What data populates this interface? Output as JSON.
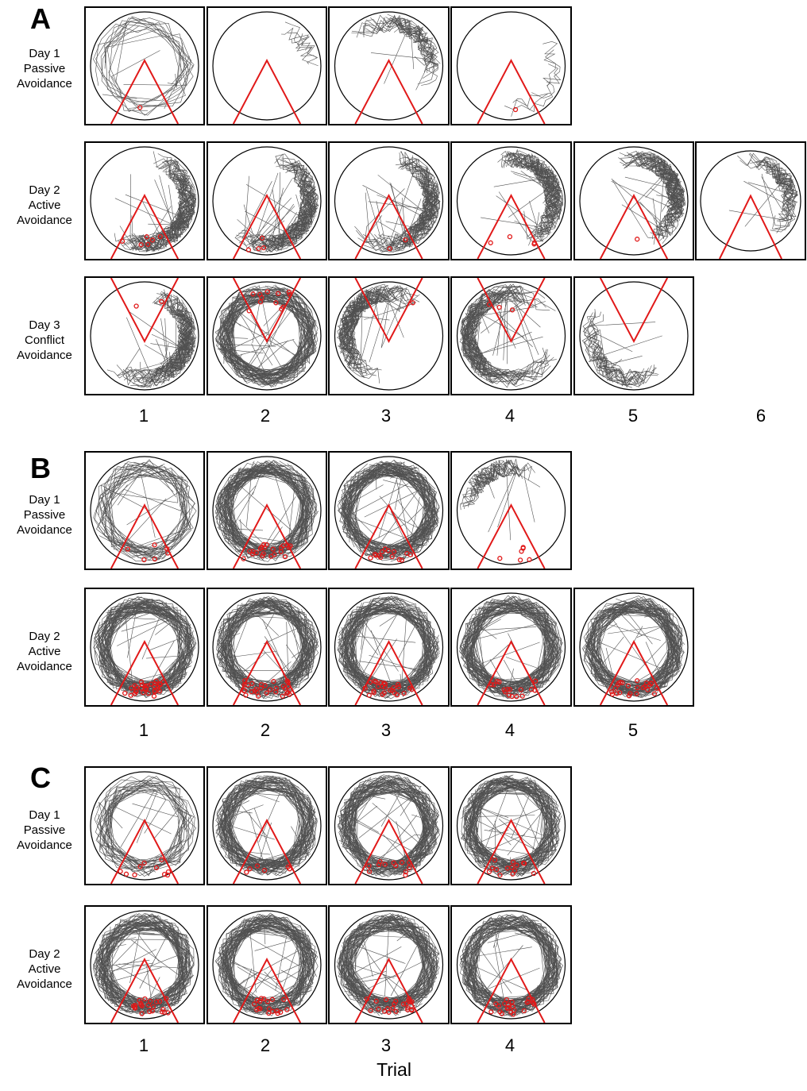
{
  "figure": {
    "axis_title": "Trial",
    "colors": {
      "arena": "#000000",
      "track": "#333333",
      "shock_zone": "#e11919",
      "shock_mark": "#e11919",
      "box_border": "#000000"
    },
    "panels": [
      {
        "letter": "A",
        "trial_numbers": [
          "1",
          "2",
          "3",
          "4",
          "5",
          "6"
        ],
        "rows": [
          {
            "label": [
              "Day 1",
              "Passive",
              "Avoidance"
            ],
            "zone_orientation": "up",
            "trials": [
              {
                "trial": 1,
                "activity": "sparse",
                "track_region": "perimeter",
                "entries": 1
              },
              {
                "trial": 2,
                "activity": "minimal",
                "track_region": "upper-right",
                "entries": 0
              },
              {
                "trial": 3,
                "activity": "moderate",
                "track_region": "upper-arc",
                "entries": 0
              },
              {
                "trial": 4,
                "activity": "minimal",
                "track_region": "right-edge",
                "entries": 1
              }
            ]
          },
          {
            "label": [
              "Day 2",
              "Active",
              "Avoidance"
            ],
            "zone_orientation": "up",
            "trials": [
              {
                "trial": 1,
                "activity": "dense",
                "track_region": "right-arc",
                "entries": 6
              },
              {
                "trial": 2,
                "activity": "dense",
                "track_region": "right-arc",
                "entries": 4
              },
              {
                "trial": 3,
                "activity": "dense",
                "track_region": "right-arc",
                "entries": 2
              },
              {
                "trial": 4,
                "activity": "dense",
                "track_region": "upper-right-arc",
                "entries": 4
              },
              {
                "trial": 5,
                "activity": "dense",
                "track_region": "upper-right-arc",
                "entries": 1
              },
              {
                "trial": 6,
                "activity": "moderate",
                "track_region": "upper-right-arc",
                "entries": 0
              }
            ]
          },
          {
            "label": [
              "Day 3",
              "Conflict",
              "Avoidance"
            ],
            "zone_orientation": "down",
            "trials": [
              {
                "trial": 1,
                "activity": "dense",
                "track_region": "right-arc",
                "entries": 2
              },
              {
                "trial": 2,
                "activity": "dense",
                "track_region": "perimeter",
                "entries": 12
              },
              {
                "trial": 3,
                "activity": "dense",
                "track_region": "lower-left-arc",
                "entries": 1
              },
              {
                "trial": 4,
                "activity": "dense",
                "track_region": "lower-arc",
                "entries": 3
              },
              {
                "trial": 5,
                "activity": "moderate",
                "track_region": "bottom-arc",
                "entries": 0
              }
            ]
          }
        ]
      },
      {
        "letter": "B",
        "trial_numbers": [
          "1",
          "2",
          "3",
          "4",
          "5"
        ],
        "rows": [
          {
            "label": [
              "Day 1",
              "Passive",
              "Avoidance"
            ],
            "zone_orientation": "up",
            "trials": [
              {
                "trial": 1,
                "activity": "moderate",
                "track_region": "perimeter",
                "entries": 6
              },
              {
                "trial": 2,
                "activity": "dense",
                "track_region": "perimeter",
                "entries": 22
              },
              {
                "trial": 3,
                "activity": "dense",
                "track_region": "perimeter",
                "entries": 14
              },
              {
                "trial": 4,
                "activity": "moderate",
                "track_region": "left-arc",
                "entries": 6
              }
            ]
          },
          {
            "label": [
              "Day 2",
              "Active",
              "Avoidance"
            ],
            "zone_orientation": "up",
            "trials": [
              {
                "trial": 1,
                "activity": "dense",
                "track_region": "perimeter",
                "entries": 30
              },
              {
                "trial": 2,
                "activity": "dense",
                "track_region": "perimeter",
                "entries": 30
              },
              {
                "trial": 3,
                "activity": "dense",
                "track_region": "perimeter",
                "entries": 25
              },
              {
                "trial": 4,
                "activity": "dense",
                "track_region": "perimeter",
                "entries": 16
              },
              {
                "trial": 5,
                "activity": "dense",
                "track_region": "perimeter",
                "entries": 24
              }
            ]
          }
        ]
      },
      {
        "letter": "C",
        "trial_numbers": [
          "1",
          "2",
          "3",
          "4"
        ],
        "rows": [
          {
            "label": [
              "Day 1",
              "Passive",
              "Avoidance"
            ],
            "zone_orientation": "up",
            "trials": [
              {
                "trial": 1,
                "activity": "moderate",
                "track_region": "perimeter",
                "entries": 10
              },
              {
                "trial": 2,
                "activity": "dense",
                "track_region": "perimeter",
                "entries": 6
              },
              {
                "trial": 3,
                "activity": "dense",
                "track_region": "perimeter",
                "entries": 12
              },
              {
                "trial": 4,
                "activity": "dense",
                "track_region": "perimeter",
                "entries": 14
              }
            ]
          },
          {
            "label": [
              "Day 2",
              "Active",
              "Avoidance"
            ],
            "zone_orientation": "up",
            "trials": [
              {
                "trial": 1,
                "activity": "dense",
                "track_region": "perimeter",
                "entries": 22
              },
              {
                "trial": 2,
                "activity": "dense",
                "track_region": "perimeter",
                "entries": 18
              },
              {
                "trial": 3,
                "activity": "dense",
                "track_region": "perimeter",
                "entries": 22
              },
              {
                "trial": 4,
                "activity": "dense",
                "track_region": "perimeter",
                "entries": 22
              }
            ]
          }
        ]
      }
    ]
  }
}
